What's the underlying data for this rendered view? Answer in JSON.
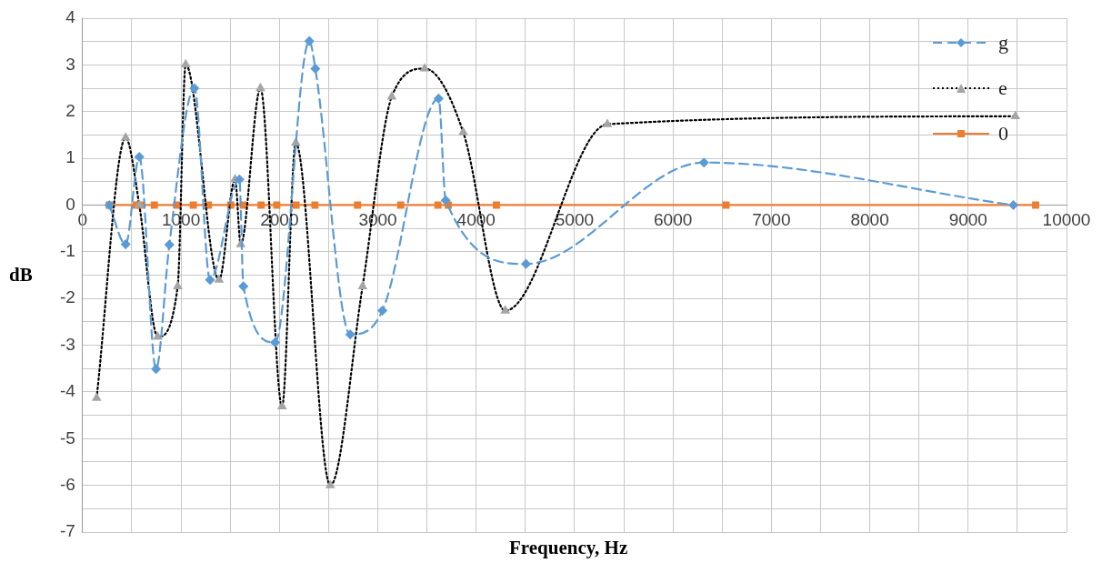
{
  "chart_data": {
    "type": "line",
    "xlabel": "Frequency, Hz",
    "ylabel": "dB",
    "xlim": [
      0,
      10000
    ],
    "xticks": [
      0,
      {
        "value": 500,
        "label": null
      },
      1000,
      {
        "value": 1500,
        "label": null
      },
      2000,
      {
        "value": 2500,
        "label": null
      },
      3000,
      {
        "value": 3500,
        "label": null
      },
      4000,
      {
        "value": 4500,
        "label": null
      },
      5000,
      {
        "value": 5500,
        "label": null
      },
      6000,
      {
        "value": 6500,
        "label": null
      },
      7000,
      {
        "value": 7500,
        "label": null
      },
      8000,
      {
        "value": 8500,
        "label": null
      },
      9000,
      {
        "value": 9500,
        "label": null
      },
      10000
    ],
    "ylim": [
      -7,
      4
    ],
    "yticks": [
      -7,
      {
        "value": -6.5,
        "label": null
      },
      -6,
      {
        "value": -5.5,
        "label": null
      },
      -5,
      {
        "value": -4.5,
        "label": null
      },
      -4,
      {
        "value": -3.5,
        "label": null
      },
      -3,
      {
        "value": -2.5,
        "label": null
      },
      -2,
      {
        "value": -1.5,
        "label": null
      },
      -1,
      {
        "value": -0.5,
        "label": null
      },
      0,
      {
        "value": 0.5,
        "label": null
      },
      1,
      {
        "value": 1.5,
        "label": null
      },
      2,
      {
        "value": 2.5,
        "label": null
      },
      3,
      {
        "value": 3.5,
        "label": null
      },
      4
    ],
    "grid": true,
    "legend": "top right",
    "series": [
      {
        "name": "g",
        "color": "#5b9bd5",
        "marker": "diamond",
        "line_style": "dashed",
        "x": [
          271,
          437,
          576,
          746,
          881,
          1136,
          1295,
          1593,
          1634,
          1956,
          2304,
          2365,
          2720,
          3047,
          3618,
          3690,
          4506,
          6315,
          9460
        ],
        "values": [
          0,
          -0.84,
          1.03,
          -3.51,
          -0.85,
          2.5,
          -1.6,
          0.55,
          -1.74,
          -2.94,
          3.51,
          2.92,
          -2.77,
          -2.26,
          2.28,
          0.1,
          -1.26,
          0.91,
          0
        ]
      },
      {
        "name": "e",
        "color": "#000000",
        "colors": [
          "#a5a5a5",
          "#a5a5a5",
          "#a5a5a5",
          "#a5a5a5",
          "#a5a5a5",
          "#a5a5a5",
          "#a5a5a5",
          "#a5a5a5",
          "#a5a5a5",
          "#a5a5a5",
          "#a5a5a5",
          "#a5a5a5",
          "#a5a5a5",
          "#a5a5a5",
          "#a5a5a5",
          "#a5a5a5",
          "#a5a5a5",
          "#a5a5a5",
          "#a5a5a5",
          "#a5a5a5"
        ],
        "marker": "triangle",
        "line_style": "dotted",
        "x": [
          142,
          437,
          576,
          763,
          966,
          1047,
          1386,
          1549,
          1607,
          1807,
          2027,
          2166,
          2517,
          2845,
          3142,
          3476,
          3868,
          4296,
          5333,
          9480
        ],
        "values": [
          -4.13,
          1.44,
          0,
          -2.82,
          -1.74,
          3.01,
          -1.6,
          0.55,
          -0.84,
          2.5,
          -4.31,
          1.33,
          -6.0,
          -1.74,
          2.32,
          2.92,
          1.56,
          -2.26,
          1.73,
          1.9
        ]
      },
      {
        "name": "0",
        "color": "#ed7d31",
        "marker": "square",
        "line_style": "solid",
        "x": [
          271,
          542,
          583,
          729,
          956,
          1125,
          1278,
          1505,
          1634,
          1814,
          1973,
          2169,
          2361,
          2794,
          3233,
          3611,
          3716,
          4206,
          6539,
          9686
        ],
        "values": [
          0,
          0,
          0,
          0,
          0,
          0,
          0,
          0,
          0,
          0,
          0,
          0,
          0,
          0,
          0,
          0,
          0,
          0,
          0,
          0
        ]
      }
    ]
  }
}
